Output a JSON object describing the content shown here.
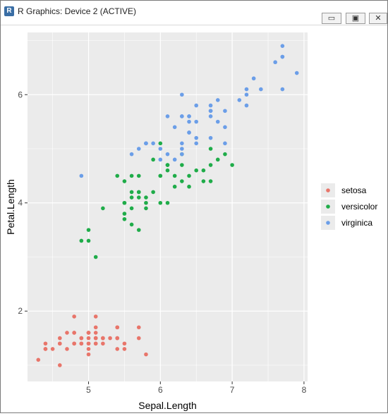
{
  "window": {
    "title": "R Graphics: Device 2 (ACTIVE)",
    "icon": "r-logo-icon",
    "controls": {
      "minimize": "minimize-icon",
      "restore": "restore-icon",
      "close": "close-icon"
    }
  },
  "chart_data": {
    "type": "scatter",
    "title": "",
    "xlabel": "Sepal.Length",
    "ylabel": "Petal.Length",
    "xlim": [
      4.15,
      8.05
    ],
    "ylim": [
      0.7,
      7.15
    ],
    "xticks": [
      5,
      6,
      7,
      8
    ],
    "yticks": [
      2,
      4,
      6
    ],
    "grid": true,
    "legend": {
      "placement": "right",
      "entries": [
        "setosa",
        "versicolor",
        "virginica"
      ]
    },
    "colors": {
      "setosa": "#e8756a",
      "versicolor": "#1fac49",
      "virginica": "#6b9ee8",
      "panel": "#ebebeb",
      "grid": "#ffffff"
    },
    "series": [
      {
        "name": "setosa",
        "points": [
          [
            5.1,
            1.4
          ],
          [
            4.9,
            1.4
          ],
          [
            4.7,
            1.3
          ],
          [
            4.6,
            1.5
          ],
          [
            5.0,
            1.4
          ],
          [
            5.4,
            1.7
          ],
          [
            4.6,
            1.4
          ],
          [
            5.0,
            1.5
          ],
          [
            4.4,
            1.4
          ],
          [
            4.9,
            1.5
          ],
          [
            5.4,
            1.5
          ],
          [
            4.8,
            1.6
          ],
          [
            4.8,
            1.4
          ],
          [
            4.3,
            1.1
          ],
          [
            5.8,
            1.2
          ],
          [
            5.7,
            1.5
          ],
          [
            5.4,
            1.3
          ],
          [
            5.1,
            1.4
          ],
          [
            5.7,
            1.7
          ],
          [
            5.1,
            1.5
          ],
          [
            5.4,
            1.7
          ],
          [
            5.1,
            1.5
          ],
          [
            4.6,
            1.0
          ],
          [
            5.1,
            1.7
          ],
          [
            4.8,
            1.9
          ],
          [
            5.0,
            1.6
          ],
          [
            5.0,
            1.6
          ],
          [
            5.2,
            1.5
          ],
          [
            5.2,
            1.4
          ],
          [
            4.7,
            1.6
          ],
          [
            4.8,
            1.6
          ],
          [
            5.4,
            1.5
          ],
          [
            5.2,
            1.5
          ],
          [
            5.5,
            1.4
          ],
          [
            4.9,
            1.5
          ],
          [
            5.0,
            1.2
          ],
          [
            5.5,
            1.3
          ],
          [
            4.9,
            1.4
          ],
          [
            4.4,
            1.3
          ],
          [
            5.1,
            1.5
          ],
          [
            5.0,
            1.3
          ],
          [
            4.5,
            1.3
          ],
          [
            4.4,
            1.3
          ],
          [
            5.0,
            1.6
          ],
          [
            5.1,
            1.9
          ],
          [
            4.8,
            1.4
          ],
          [
            5.1,
            1.6
          ],
          [
            4.6,
            1.4
          ],
          [
            5.3,
            1.5
          ],
          [
            5.0,
            1.4
          ]
        ]
      },
      {
        "name": "versicolor",
        "points": [
          [
            7.0,
            4.7
          ],
          [
            6.4,
            4.5
          ],
          [
            6.9,
            4.9
          ],
          [
            5.5,
            4.0
          ],
          [
            6.5,
            4.6
          ],
          [
            5.7,
            4.5
          ],
          [
            6.3,
            4.7
          ],
          [
            4.9,
            3.3
          ],
          [
            6.6,
            4.6
          ],
          [
            5.2,
            3.9
          ],
          [
            5.0,
            3.5
          ],
          [
            5.9,
            4.2
          ],
          [
            6.0,
            4.0
          ],
          [
            6.1,
            4.7
          ],
          [
            5.6,
            3.6
          ],
          [
            6.7,
            4.4
          ],
          [
            5.6,
            4.5
          ],
          [
            5.8,
            4.1
          ],
          [
            6.2,
            4.5
          ],
          [
            5.6,
            3.9
          ],
          [
            5.9,
            4.8
          ],
          [
            6.1,
            4.0
          ],
          [
            6.3,
            4.9
          ],
          [
            6.1,
            4.7
          ],
          [
            6.4,
            4.3
          ],
          [
            6.6,
            4.4
          ],
          [
            6.8,
            4.8
          ],
          [
            6.7,
            5.0
          ],
          [
            6.0,
            4.5
          ],
          [
            5.7,
            3.5
          ],
          [
            5.5,
            3.8
          ],
          [
            5.5,
            3.7
          ],
          [
            5.8,
            3.9
          ],
          [
            6.0,
            5.1
          ],
          [
            5.4,
            4.5
          ],
          [
            6.0,
            4.5
          ],
          [
            6.7,
            4.7
          ],
          [
            6.3,
            4.4
          ],
          [
            5.6,
            4.1
          ],
          [
            5.5,
            4.0
          ],
          [
            5.5,
            4.4
          ],
          [
            6.1,
            4.6
          ],
          [
            5.8,
            4.0
          ],
          [
            5.0,
            3.3
          ],
          [
            5.6,
            4.2
          ],
          [
            5.7,
            4.2
          ],
          [
            5.7,
            4.2
          ],
          [
            6.2,
            4.3
          ],
          [
            5.1,
            3.0
          ],
          [
            5.7,
            4.1
          ]
        ]
      },
      {
        "name": "virginica",
        "points": [
          [
            6.3,
            6.0
          ],
          [
            5.8,
            5.1
          ],
          [
            7.1,
            5.9
          ],
          [
            6.3,
            5.6
          ],
          [
            6.5,
            5.8
          ],
          [
            7.6,
            6.6
          ],
          [
            4.9,
            4.5
          ],
          [
            7.3,
            6.3
          ],
          [
            6.7,
            5.8
          ],
          [
            7.2,
            6.1
          ],
          [
            6.5,
            5.1
          ],
          [
            6.4,
            5.3
          ],
          [
            6.8,
            5.5
          ],
          [
            5.7,
            5.0
          ],
          [
            5.8,
            5.1
          ],
          [
            6.4,
            5.3
          ],
          [
            6.5,
            5.5
          ],
          [
            7.7,
            6.7
          ],
          [
            7.7,
            6.9
          ],
          [
            6.0,
            5.0
          ],
          [
            6.9,
            5.7
          ],
          [
            5.6,
            4.9
          ],
          [
            7.7,
            6.7
          ],
          [
            6.3,
            4.9
          ],
          [
            6.7,
            5.7
          ],
          [
            7.2,
            6.0
          ],
          [
            6.2,
            4.8
          ],
          [
            6.1,
            4.9
          ],
          [
            6.4,
            5.6
          ],
          [
            7.2,
            5.8
          ],
          [
            7.4,
            6.1
          ],
          [
            7.9,
            6.4
          ],
          [
            6.4,
            5.6
          ],
          [
            6.3,
            5.1
          ],
          [
            6.1,
            5.6
          ],
          [
            7.7,
            6.1
          ],
          [
            6.3,
            5.6
          ],
          [
            6.4,
            5.5
          ],
          [
            6.0,
            4.8
          ],
          [
            6.9,
            5.4
          ],
          [
            6.7,
            5.6
          ],
          [
            6.9,
            5.1
          ],
          [
            5.8,
            5.1
          ],
          [
            6.8,
            5.9
          ],
          [
            6.7,
            5.7
          ],
          [
            6.7,
            5.2
          ],
          [
            6.3,
            5.0
          ],
          [
            6.5,
            5.2
          ],
          [
            6.2,
            5.4
          ],
          [
            5.9,
            5.1
          ]
        ]
      }
    ]
  }
}
